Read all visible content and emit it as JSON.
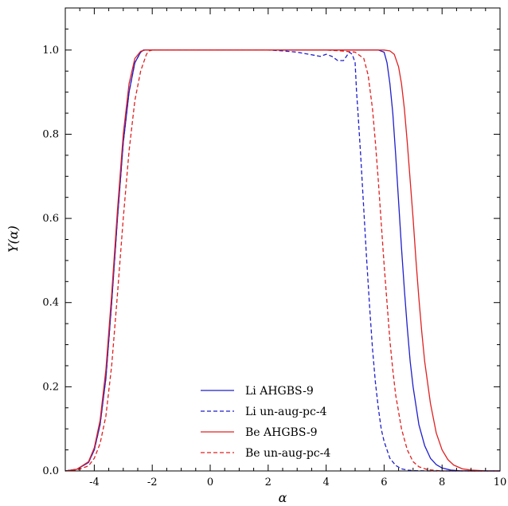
{
  "chart_data": {
    "type": "line",
    "title": "",
    "xlabel": "α",
    "ylabel": "Y(α)",
    "xlim": [
      -5,
      10
    ],
    "ylim": [
      0,
      1.1
    ],
    "xticks": [
      -4,
      -2,
      0,
      2,
      4,
      6,
      8,
      10
    ],
    "yticks": [
      0.0,
      0.2,
      0.4,
      0.6,
      0.8,
      1.0
    ],
    "xtick_labels": [
      "-4",
      "-2",
      "0",
      "2",
      "4",
      "6",
      "8",
      "10"
    ],
    "ytick_labels": [
      "0.0",
      "0.2",
      "0.4",
      "0.6",
      "0.8",
      "1.0"
    ],
    "grid": false,
    "legend_position": "bottom-center",
    "series": [
      {
        "name": "Li AHGBS-9",
        "color": "#1f1fcc",
        "dash": "solid",
        "x": [
          -5.0,
          -4.6,
          -4.2,
          -4.0,
          -3.8,
          -3.6,
          -3.4,
          -3.2,
          -3.0,
          -2.8,
          -2.6,
          -2.4,
          -2.3,
          -2.0,
          0.0,
          2.0,
          4.0,
          5.8,
          6.0,
          6.1,
          6.2,
          6.3,
          6.4,
          6.5,
          6.6,
          6.7,
          6.8,
          6.9,
          7.0,
          7.2,
          7.4,
          7.6,
          7.8,
          8.0,
          8.3,
          8.6,
          9.0,
          10.0
        ],
        "y": [
          0.0,
          0.004,
          0.02,
          0.05,
          0.11,
          0.22,
          0.4,
          0.6,
          0.78,
          0.9,
          0.97,
          0.995,
          1.0,
          1.0,
          1.0,
          1.0,
          1.0,
          1.0,
          0.995,
          0.97,
          0.92,
          0.85,
          0.75,
          0.64,
          0.53,
          0.43,
          0.34,
          0.26,
          0.2,
          0.11,
          0.06,
          0.03,
          0.015,
          0.007,
          0.002,
          0.0005,
          0.0,
          0.0
        ]
      },
      {
        "name": "Li un-aug-pc-4",
        "color": "#1f1fcc",
        "dash": "dashed",
        "x": [
          -5.0,
          -4.6,
          -4.2,
          -4.0,
          -3.8,
          -3.6,
          -3.4,
          -3.2,
          -3.0,
          -2.8,
          -2.6,
          -2.4,
          -2.3,
          -2.0,
          0.0,
          2.0,
          2.5,
          3.0,
          3.4,
          3.8,
          4.0,
          4.2,
          4.4,
          4.6,
          4.8,
          4.9,
          5.0,
          5.05,
          5.1,
          5.2,
          5.3,
          5.4,
          5.5,
          5.6,
          5.7,
          5.8,
          5.9,
          6.0,
          6.2,
          6.4,
          6.6,
          6.8,
          7.0,
          7.5,
          10.0
        ],
        "y": [
          0.0,
          0.004,
          0.02,
          0.05,
          0.11,
          0.22,
          0.4,
          0.6,
          0.78,
          0.9,
          0.97,
          0.995,
          1.0,
          1.0,
          1.0,
          1.0,
          0.998,
          0.995,
          0.99,
          0.985,
          0.99,
          0.985,
          0.975,
          0.975,
          0.995,
          0.99,
          0.97,
          0.9,
          0.85,
          0.74,
          0.62,
          0.5,
          0.39,
          0.29,
          0.21,
          0.15,
          0.1,
          0.07,
          0.03,
          0.013,
          0.005,
          0.002,
          0.0008,
          0.0,
          0.0
        ]
      },
      {
        "name": "Be AHGBS-9",
        "color": "#e02020",
        "dash": "solid",
        "x": [
          -5.0,
          -4.6,
          -4.2,
          -4.0,
          -3.8,
          -3.6,
          -3.4,
          -3.2,
          -3.0,
          -2.8,
          -2.6,
          -2.4,
          -2.25,
          -2.0,
          0.0,
          2.0,
          4.0,
          6.0,
          6.2,
          6.35,
          6.5,
          6.6,
          6.7,
          6.8,
          6.9,
          7.0,
          7.1,
          7.2,
          7.3,
          7.4,
          7.6,
          7.8,
          8.0,
          8.2,
          8.4,
          8.7,
          9.0,
          9.5,
          10.0
        ],
        "y": [
          0.0,
          0.004,
          0.022,
          0.055,
          0.12,
          0.24,
          0.42,
          0.62,
          0.8,
          0.92,
          0.98,
          0.997,
          1.0,
          1.0,
          1.0,
          1.0,
          1.0,
          1.0,
          0.998,
          0.99,
          0.96,
          0.92,
          0.86,
          0.78,
          0.69,
          0.6,
          0.5,
          0.41,
          0.33,
          0.26,
          0.16,
          0.09,
          0.05,
          0.027,
          0.014,
          0.005,
          0.002,
          0.0003,
          0.0
        ]
      },
      {
        "name": "Be un-aug-pc-4",
        "color": "#e02020",
        "dash": "dashed",
        "x": [
          -5.0,
          -4.6,
          -4.2,
          -4.0,
          -3.8,
          -3.6,
          -3.4,
          -3.2,
          -3.0,
          -2.8,
          -2.6,
          -2.4,
          -2.2,
          -2.1,
          -2.0,
          0.0,
          2.0,
          4.0,
          4.5,
          5.0,
          5.3,
          5.45,
          5.6,
          5.7,
          5.8,
          5.9,
          6.0,
          6.1,
          6.2,
          6.3,
          6.4,
          6.6,
          6.8,
          7.0,
          7.2,
          7.5,
          8.0,
          10.0
        ],
        "y": [
          0.0,
          0.002,
          0.012,
          0.03,
          0.065,
          0.13,
          0.25,
          0.42,
          0.6,
          0.76,
          0.88,
          0.95,
          0.99,
          0.998,
          1.0,
          1.0,
          1.0,
          1.0,
          0.998,
          0.995,
          0.98,
          0.94,
          0.86,
          0.78,
          0.69,
          0.59,
          0.49,
          0.4,
          0.31,
          0.24,
          0.18,
          0.1,
          0.05,
          0.022,
          0.01,
          0.003,
          0.0,
          0.0
        ]
      }
    ]
  }
}
